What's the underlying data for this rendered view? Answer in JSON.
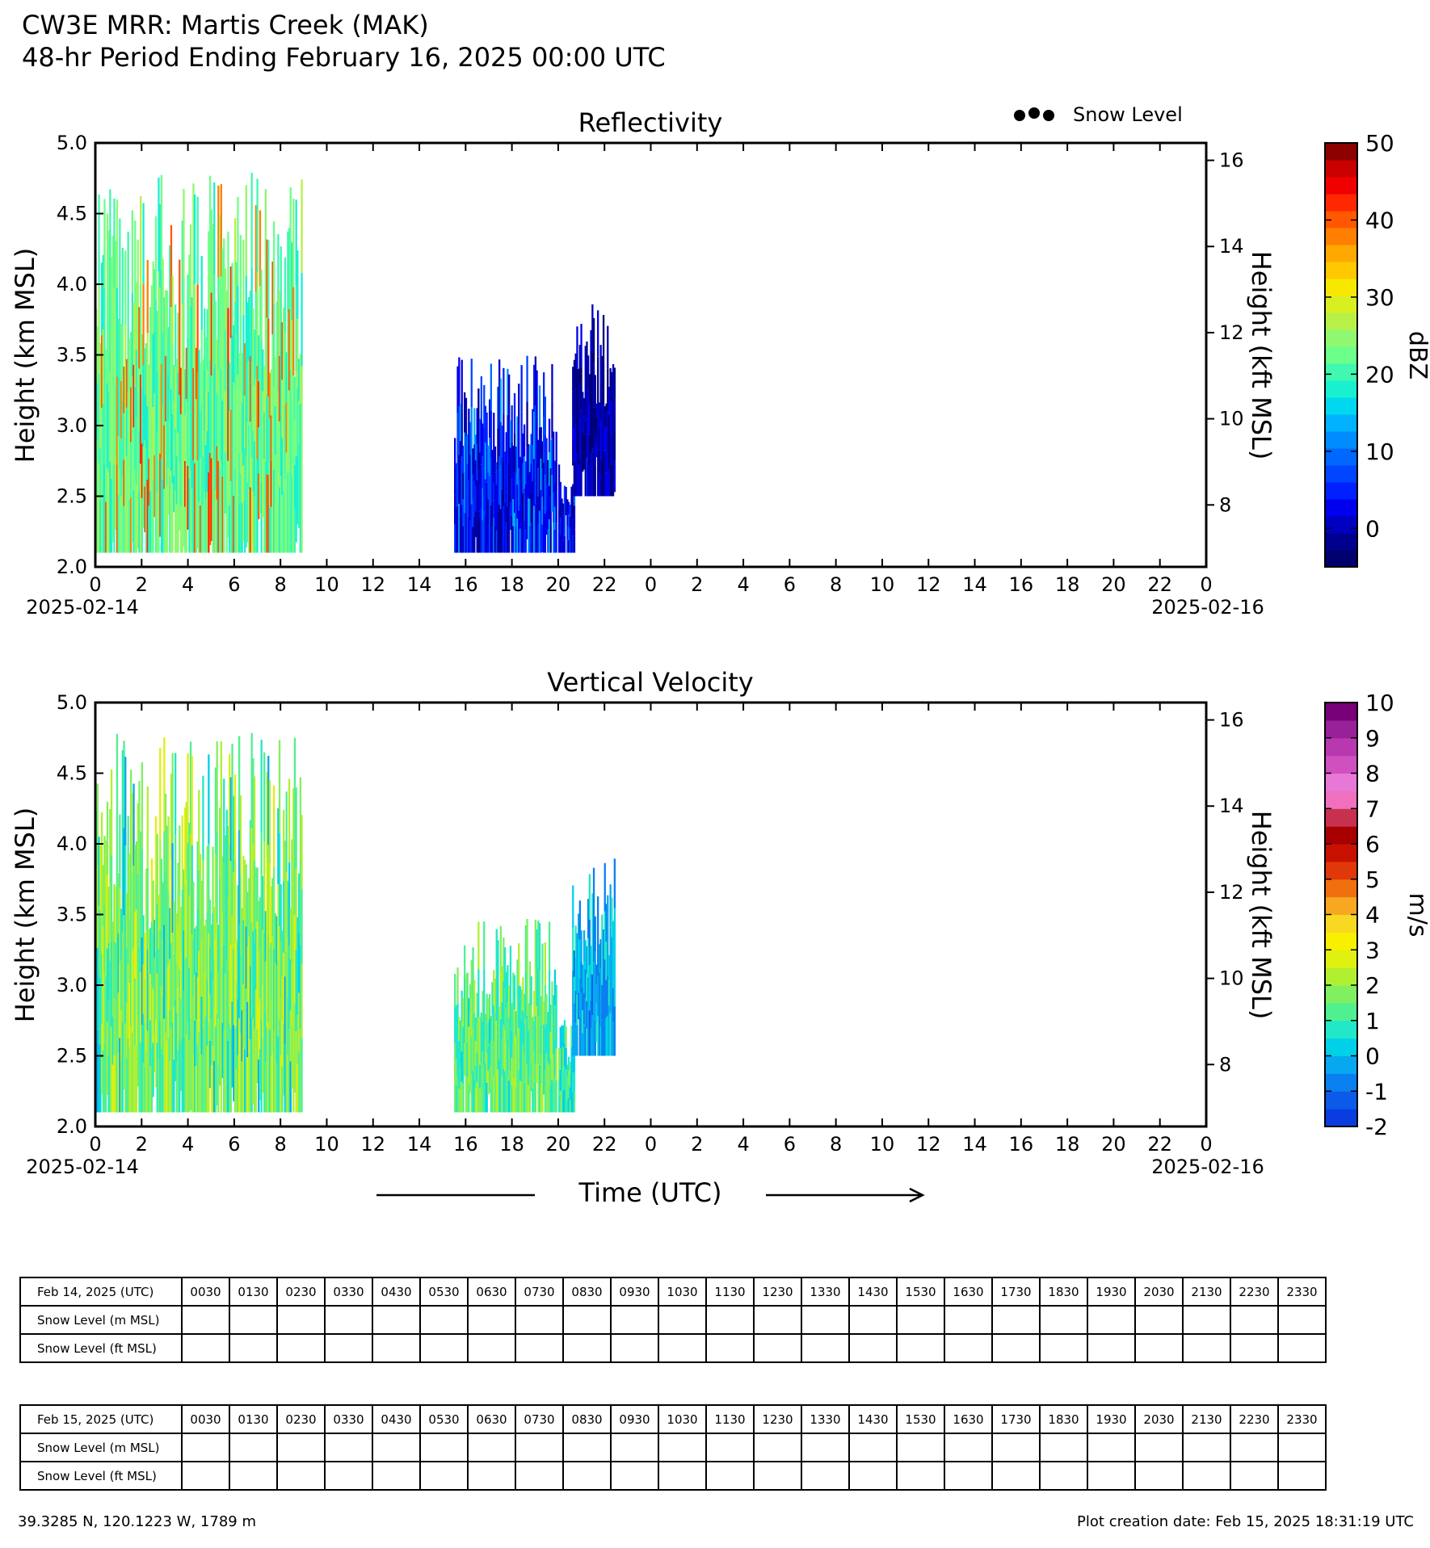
{
  "header": {
    "title": "CW3E MRR: Martis Creek (MAK)",
    "subtitle": "48-hr Period Ending February 16, 2025 00:00 UTC"
  },
  "legend": {
    "snow_level_label": "Snow Level"
  },
  "chart_data": [
    {
      "type": "heatmap",
      "title": "Reflectivity",
      "ylabel": "Height (km MSL)",
      "y2label": "Height (kft MSL)",
      "ylim": [
        2.0,
        5.0
      ],
      "yticks": [
        "2.0",
        "2.5",
        "3.0",
        "3.5",
        "4.0",
        "4.5",
        "5.0"
      ],
      "y2ticks": [
        "8",
        "10",
        "12",
        "14",
        "16"
      ],
      "xlim_hours": [
        0,
        48
      ],
      "xticks": [
        "0",
        "2",
        "4",
        "6",
        "8",
        "10",
        "12",
        "14",
        "16",
        "18",
        "20",
        "22",
        "0",
        "2",
        "4",
        "6",
        "8",
        "10",
        "12",
        "14",
        "16",
        "18",
        "20",
        "22",
        "0"
      ],
      "start_date": "2025-02-14",
      "end_date": "2025-02-16",
      "colorbar": {
        "label": "dBZ",
        "min": -5,
        "max": 50,
        "ticks": [
          "0",
          "10",
          "20",
          "30",
          "40",
          "50"
        ],
        "colors": [
          "#00006e",
          "#00008f",
          "#0000c0",
          "#0000ee",
          "#0020ff",
          "#0045ff",
          "#0068ff",
          "#008cff",
          "#00b2ff",
          "#00d8f0",
          "#19f0d0",
          "#40f8b0",
          "#6cff8a",
          "#90f870",
          "#b8f048",
          "#d8f020",
          "#f8e800",
          "#ffc800",
          "#ffa800",
          "#ff8000",
          "#ff5800",
          "#ff2800",
          "#f00000",
          "#c80000",
          "#8c0000"
        ]
      },
      "echoes": [
        {
          "t_start": 0.0,
          "t_end": 8.9,
          "z_min": 2.1,
          "z_max": 4.8,
          "dominant_dbz": 22,
          "peak_dbz": 40
        },
        {
          "t_start": 15.5,
          "t_end": 19.9,
          "z_min": 2.1,
          "z_max": 3.5,
          "dominant_dbz": 3,
          "peak_dbz": 12
        },
        {
          "t_start": 20.0,
          "t_end": 20.7,
          "z_min": 2.1,
          "z_max": 2.8,
          "dominant_dbz": 3,
          "peak_dbz": 8
        },
        {
          "t_start": 20.6,
          "t_end": 22.4,
          "z_min": 2.5,
          "z_max": 3.9,
          "dominant_dbz": -2,
          "peak_dbz": 2
        }
      ]
    },
    {
      "type": "heatmap",
      "title": "Vertical Velocity",
      "ylabel": "Height (km MSL)",
      "y2label": "Height (kft MSL)",
      "xlabel": "Time (UTC)",
      "ylim": [
        2.0,
        5.0
      ],
      "yticks": [
        "2.0",
        "2.5",
        "3.0",
        "3.5",
        "4.0",
        "4.5",
        "5.0"
      ],
      "y2ticks": [
        "8",
        "10",
        "12",
        "14",
        "16"
      ],
      "xlim_hours": [
        0,
        48
      ],
      "xticks": [
        "0",
        "2",
        "4",
        "6",
        "8",
        "10",
        "12",
        "14",
        "16",
        "18",
        "20",
        "22",
        "0",
        "2",
        "4",
        "6",
        "8",
        "10",
        "12",
        "14",
        "16",
        "18",
        "20",
        "22",
        "0"
      ],
      "start_date": "2025-02-14",
      "end_date": "2025-02-16",
      "colorbar": {
        "label": "m/s",
        "min": -2,
        "max": 10,
        "ticks": [
          "-2",
          "-1",
          "0",
          "1",
          "2",
          "3",
          "4",
          "5",
          "6",
          "7",
          "8",
          "9",
          "10"
        ],
        "colors": [
          "#0a3ce0",
          "#0c5ae8",
          "#0a80f0",
          "#08a8f0",
          "#00d0e8",
          "#20e8c8",
          "#50f090",
          "#80f060",
          "#b0f030",
          "#e0f010",
          "#f8f000",
          "#f8d820",
          "#f8a820",
          "#f07010",
          "#e03808",
          "#c81000",
          "#a80000",
          "#c83050",
          "#f070c0",
          "#e878d8",
          "#d050c0",
          "#b838b0",
          "#982098",
          "#780078"
        ]
      },
      "echoes": [
        {
          "t_start": 0.0,
          "t_end": 8.9,
          "z_min": 2.1,
          "z_max": 4.8,
          "dominant_ms": 1.8,
          "peak_ms": 0.2
        },
        {
          "t_start": 15.5,
          "t_end": 19.9,
          "z_min": 2.1,
          "z_max": 3.5,
          "dominant_ms": 1.5,
          "peak_ms": 0.8
        },
        {
          "t_start": 20.0,
          "t_end": 20.7,
          "z_min": 2.1,
          "z_max": 2.8,
          "dominant_ms": 1.0,
          "peak_ms": 0.5
        },
        {
          "t_start": 20.6,
          "t_end": 22.4,
          "z_min": 2.5,
          "z_max": 3.9,
          "dominant_ms": 0.0,
          "peak_ms": -0.8
        }
      ]
    }
  ],
  "tables": [
    {
      "date_label": "Feb 14, 2025 (UTC)",
      "row_m_label": "Snow Level (m MSL)",
      "row_ft_label": "Snow Level (ft MSL)",
      "times": [
        "0030",
        "0130",
        "0230",
        "0330",
        "0430",
        "0530",
        "0630",
        "0730",
        "0830",
        "0930",
        "1030",
        "1130",
        "1230",
        "1330",
        "1430",
        "1530",
        "1630",
        "1730",
        "1830",
        "1930",
        "2030",
        "2130",
        "2230",
        "2330"
      ]
    },
    {
      "date_label": "Feb 15, 2025 (UTC)",
      "row_m_label": "Snow Level (m MSL)",
      "row_ft_label": "Snow Level (ft MSL)",
      "times": [
        "0030",
        "0130",
        "0230",
        "0330",
        "0430",
        "0530",
        "0630",
        "0730",
        "0830",
        "0930",
        "1030",
        "1130",
        "1230",
        "1330",
        "1430",
        "1530",
        "1630",
        "1730",
        "1830",
        "1930",
        "2030",
        "2130",
        "2230",
        "2330"
      ]
    }
  ],
  "footer": {
    "location": "39.3285 N, 120.1223 W, 1789 m",
    "creation": "Plot creation date: Feb 15, 2025 18:31:19 UTC"
  }
}
